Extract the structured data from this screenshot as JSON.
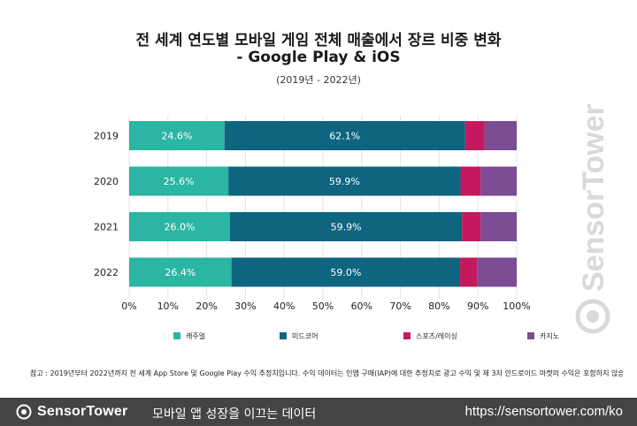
{
  "header": {
    "title_line1": "전 세계 연도별 모바일 게임 전체 매출에서 장르 비중 변화",
    "title_line2": "- Google Play & iOS",
    "period": "(2019년 - 2022년)"
  },
  "chart_data": {
    "type": "bar",
    "orientation": "horizontal",
    "stacked": true,
    "categories": [
      "2019",
      "2020",
      "2021",
      "2022"
    ],
    "series": [
      {
        "name": "캐주얼",
        "color": "#2bb5a3",
        "values": [
          24.6,
          25.6,
          26.0,
          26.4
        ],
        "labels": [
          "24.6%",
          "25.6%",
          "26.0%",
          "26.4%"
        ]
      },
      {
        "name": "미드코어",
        "color": "#0f6580",
        "values": [
          62.1,
          59.9,
          59.9,
          59.0
        ],
        "labels": [
          "62.1%",
          "59.9%",
          "59.9%",
          "59.0%"
        ]
      },
      {
        "name": "스포츠/레이싱",
        "color": "#c4195f",
        "values": [
          5.0,
          5.2,
          4.8,
          4.4
        ]
      },
      {
        "name": "카지노",
        "color": "#7b4b93",
        "values": [
          8.3,
          9.3,
          9.3,
          10.2
        ]
      }
    ],
    "xlim": [
      0,
      100
    ],
    "xticks": [
      "0%",
      "10%",
      "20%",
      "30%",
      "40%",
      "50%",
      "60%",
      "70%",
      "80%",
      "90%",
      "100%"
    ],
    "grid": "vertical",
    "legend_position": "bottom"
  },
  "footnote": "참고 : 2019년부터 2022년까지 전 세계 App Store 및 Google Play 수익 추정치입니다. 수익 데이터는 인앱 구매(IAP)에 대한 추정치로 광고 수익 및 제 3자 안드로이드 마켓의 수익은 포함하지 않습니다.",
  "footer": {
    "brand": "SensorTower",
    "tagline": "모바일 앱 성장을 이끄는 데이터",
    "url": "https://sensortower.com/ko"
  },
  "watermark": "SensorTower"
}
